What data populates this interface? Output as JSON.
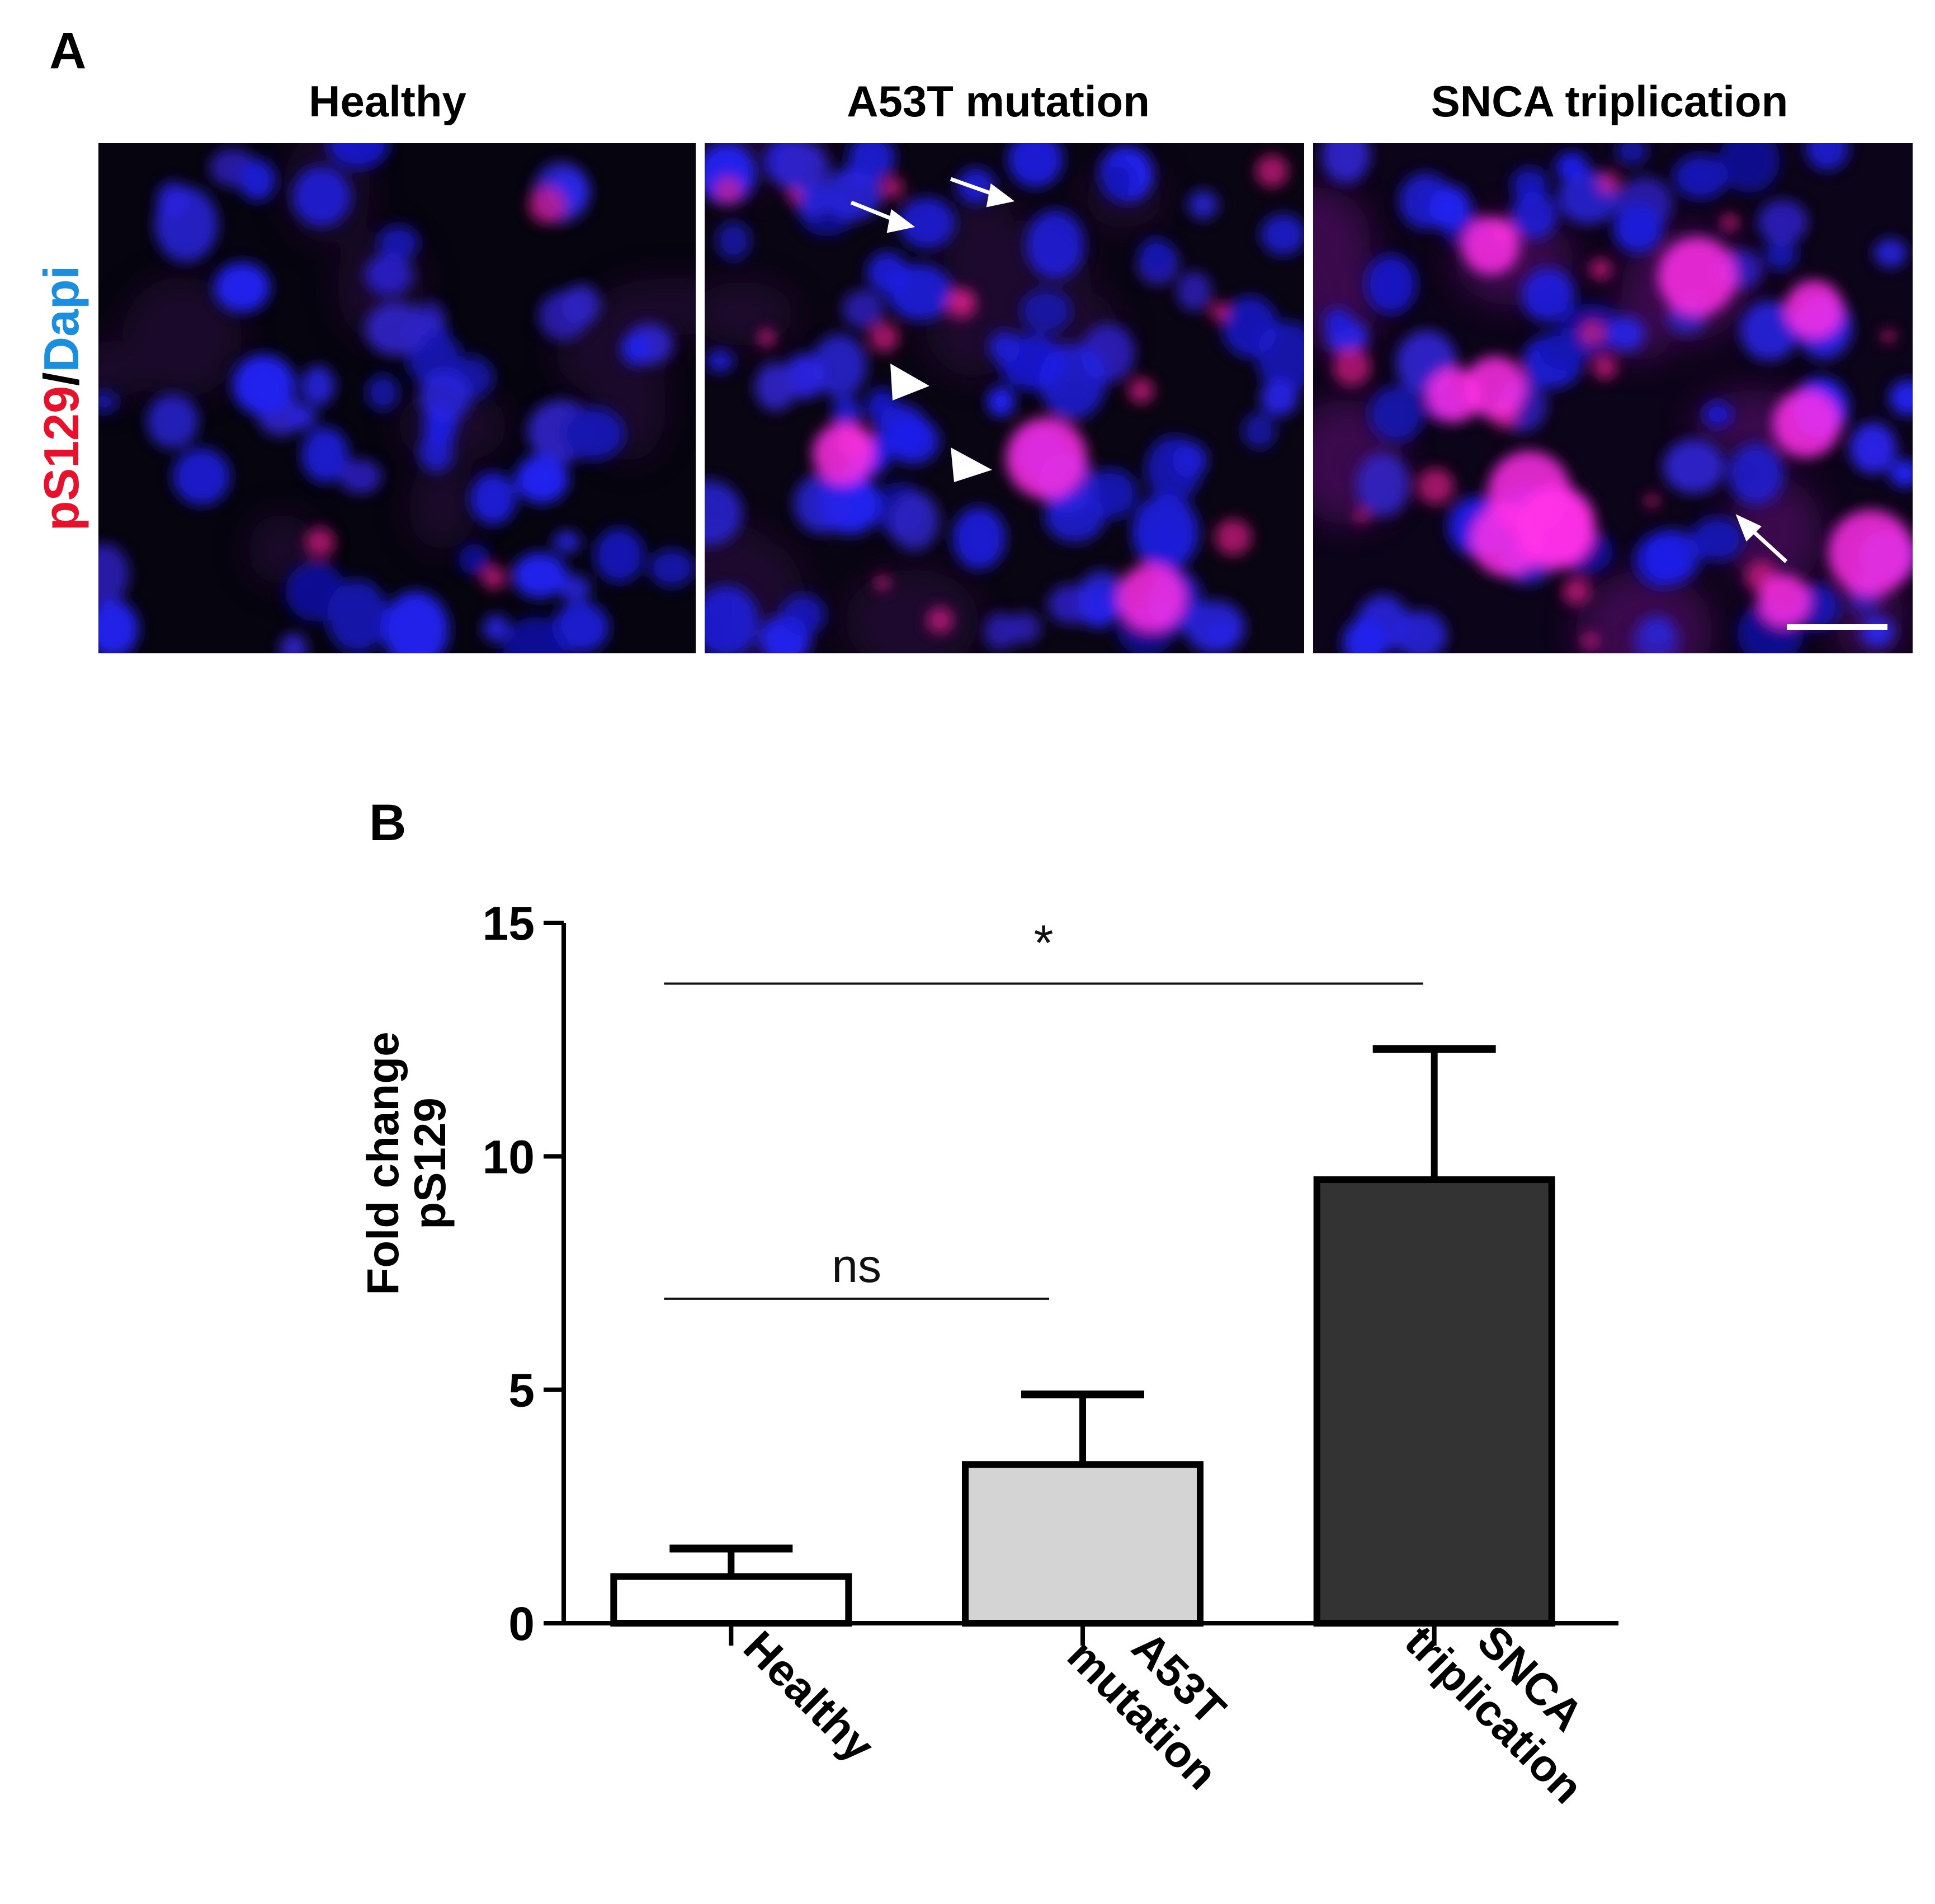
{
  "panel_a": {
    "letter": "A",
    "stain_label_red": "pS129",
    "stain_label_sep": "/",
    "stain_label_blue": "Dapi",
    "stain_colors": {
      "red": "#e8102a",
      "blue": "#1a8fe0"
    },
    "images": [
      {
        "title": "Healthy"
      },
      {
        "title": "A53T mutation"
      },
      {
        "title": "SNCA triplication"
      }
    ]
  },
  "panel_b": {
    "letter": "B"
  },
  "chart_data": {
    "type": "bar",
    "categories": [
      "Healthy",
      "A53T\nmutation",
      "SNCA\ntriplication"
    ],
    "values": [
      1.0,
      3.4,
      9.5
    ],
    "error_upper": [
      1.6,
      4.9,
      12.3
    ],
    "bar_colors": [
      "#ffffff",
      "#d4d4d4",
      "#333333"
    ],
    "ylabel_line1": "Fold change",
    "ylabel_line2": "pS129",
    "ylim": [
      0,
      15
    ],
    "yticks": [
      0,
      5,
      10,
      15
    ],
    "grid": false,
    "significance": [
      {
        "from": 0,
        "to": 1,
        "label": "ns",
        "y": 6.95
      },
      {
        "from": 0,
        "to": 2,
        "label": "*",
        "y": 13.7
      }
    ]
  }
}
